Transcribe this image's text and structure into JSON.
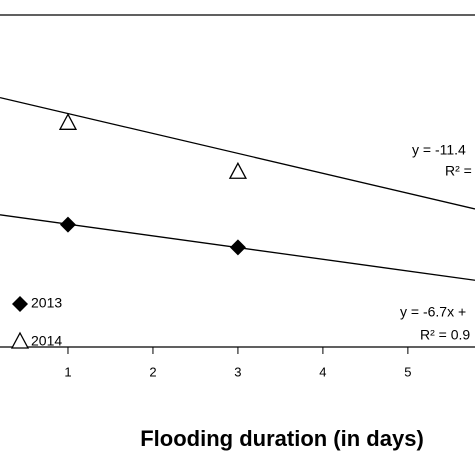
{
  "chart_data": {
    "type": "scatter",
    "x_label": "Flooding duration (in days)",
    "xlim": [
      0.2,
      5.79
    ],
    "ylim": [
      0,
      190
    ],
    "xticks": [
      1,
      2,
      3,
      4,
      5
    ],
    "series": [
      {
        "name": "2013",
        "marker": "diamond",
        "color": "#000000",
        "x": [
          1,
          3
        ],
        "values": [
          70,
          57
        ],
        "trendline": {
          "slope": -6.7,
          "intercept": 77
        },
        "equation": "y = -6.7x +",
        "r2": "R² = 0.9"
      },
      {
        "name": "2014",
        "marker": "triangle",
        "color": "#000000",
        "x": [
          1,
          3
        ],
        "values": [
          128,
          100
        ],
        "trendline": {
          "slope": -11.4,
          "intercept": 145
        },
        "equation": "y = -11.4",
        "r2": "R² ="
      }
    ]
  }
}
